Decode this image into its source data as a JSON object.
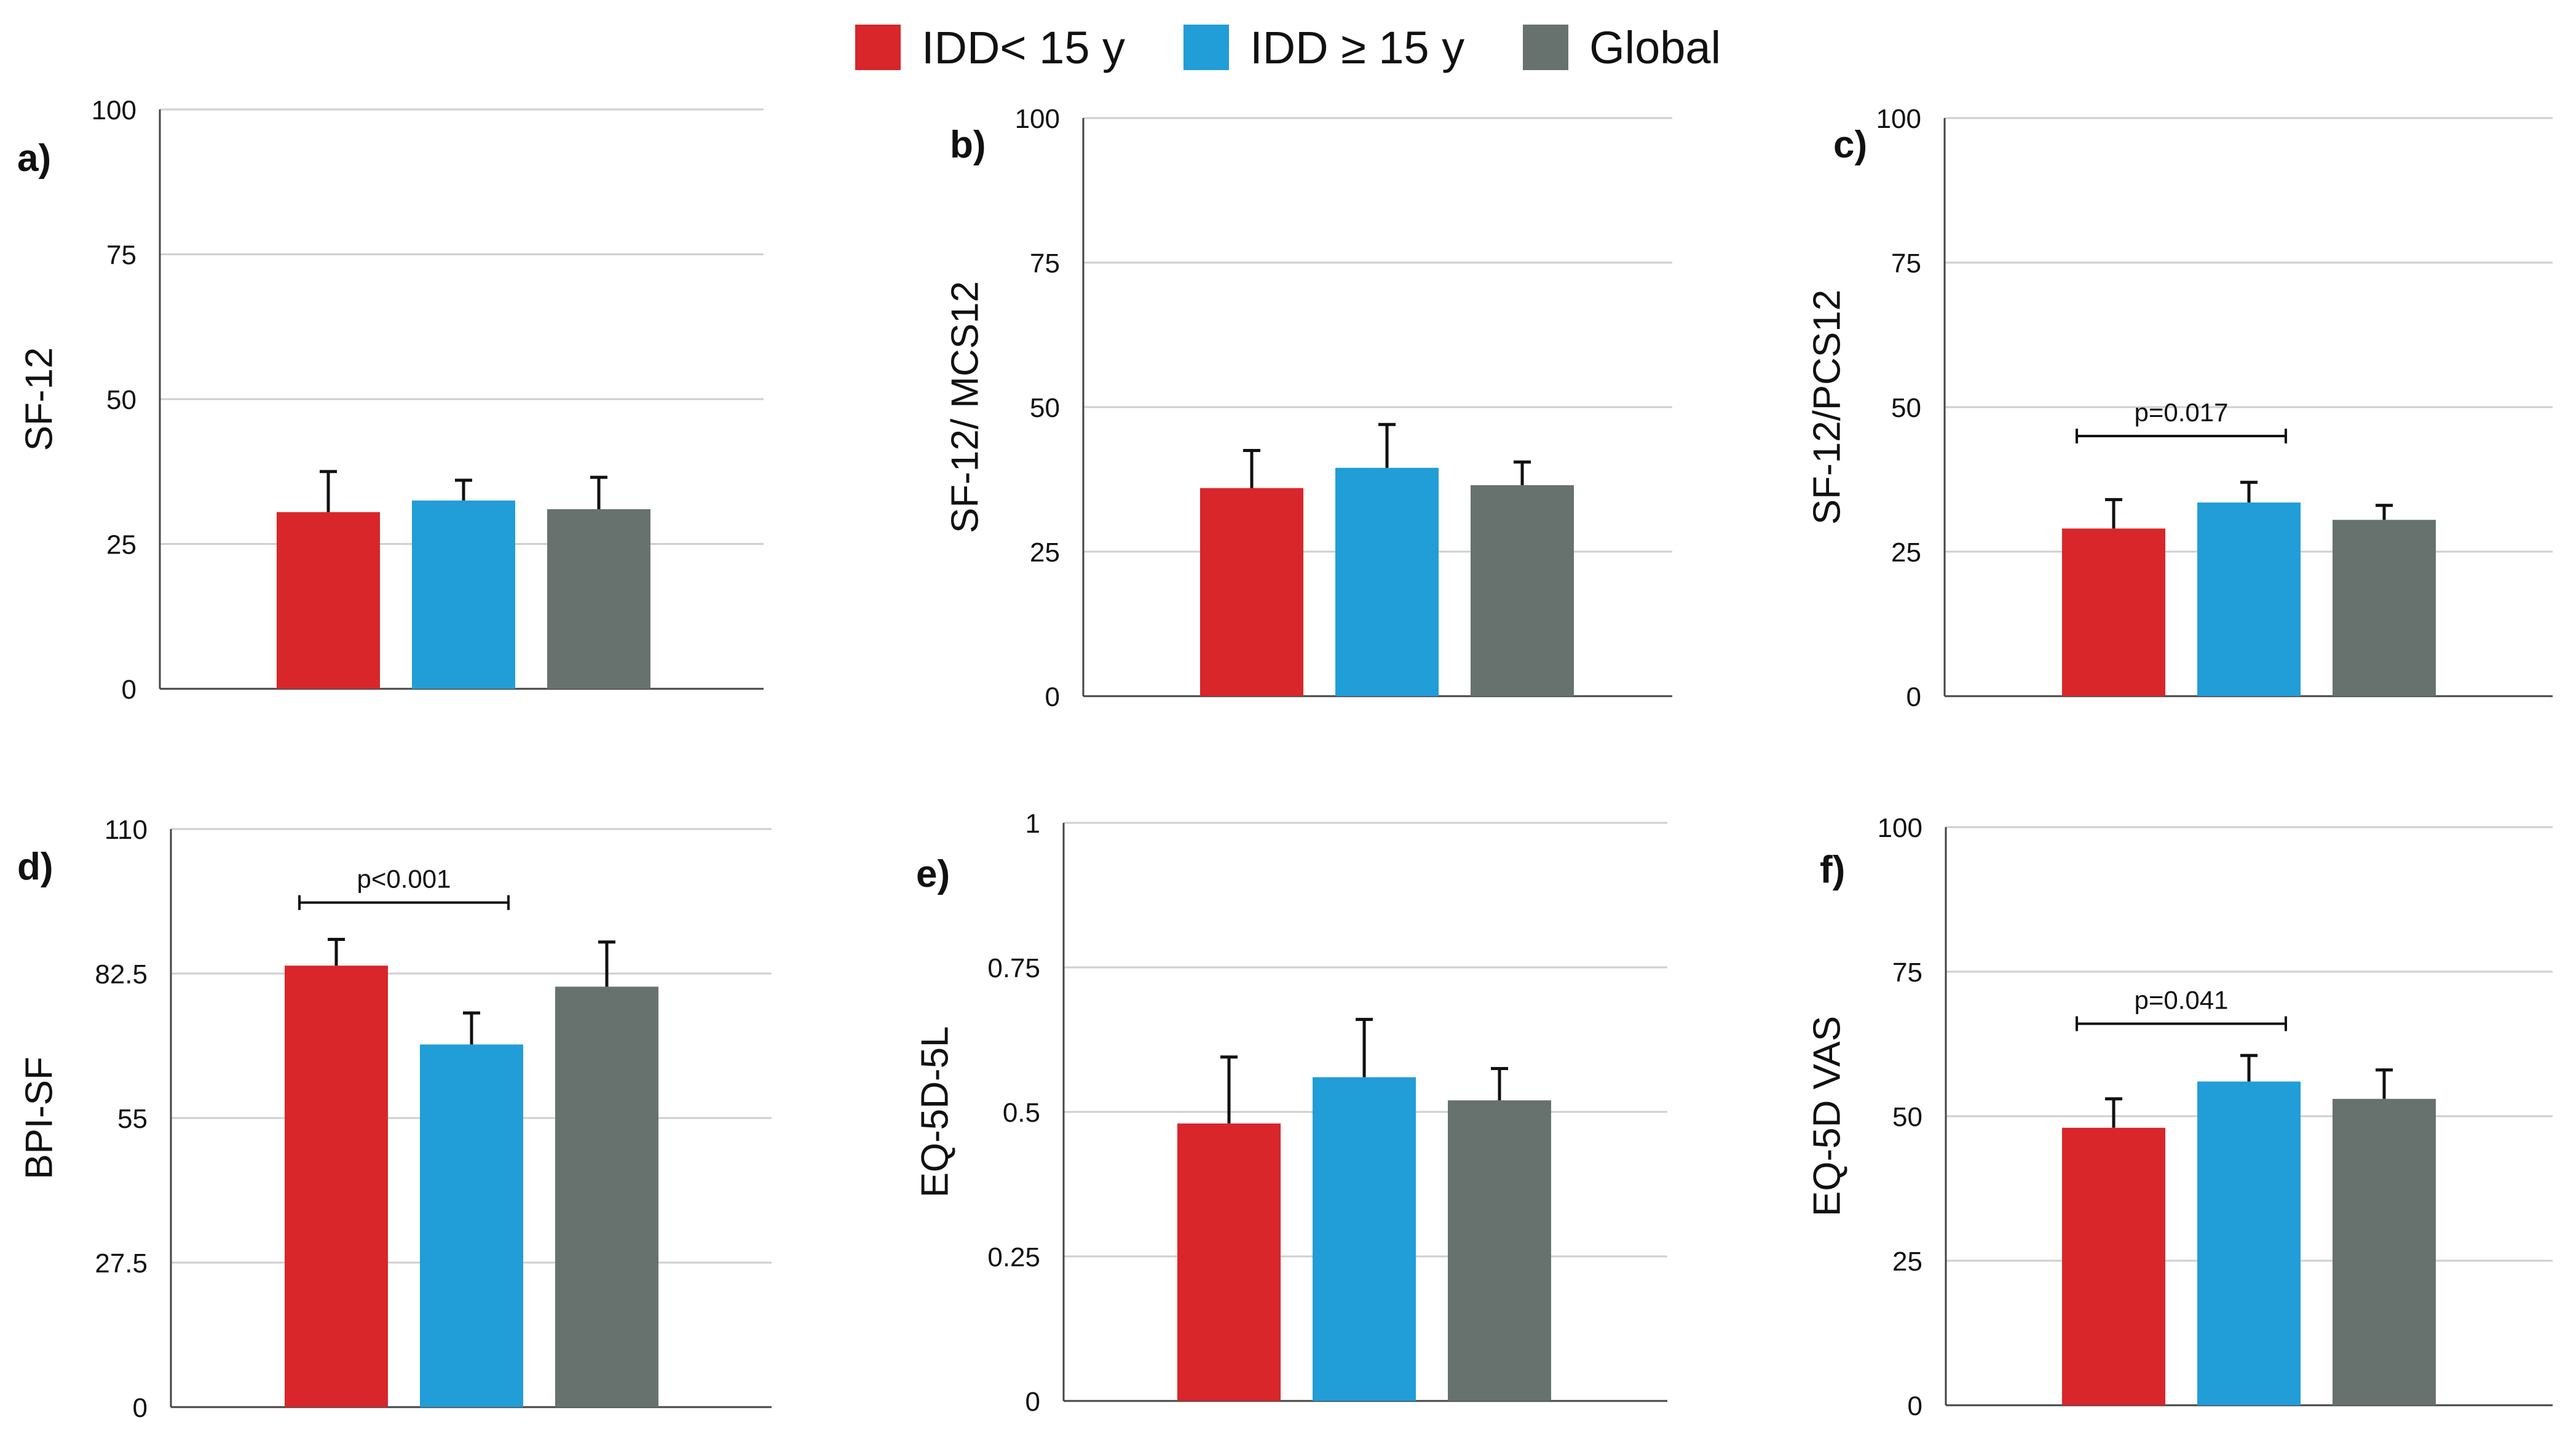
{
  "legend": [
    {
      "label": "IDD< 15 y",
      "color": "#d8262b"
    },
    {
      "label": "IDD ≥ 15 y",
      "color": "#219dd8"
    },
    {
      "label": "Global",
      "color": "#67726e"
    }
  ],
  "chart_data": [
    {
      "panel": "a)",
      "type": "bar",
      "ylabel": "SF-12",
      "ylim": [
        0,
        100
      ],
      "yticks": [
        "0",
        "25",
        "50",
        "75",
        "100"
      ],
      "categories": [
        "IDD< 15 y",
        "IDD ≥ 15 y",
        "Global"
      ],
      "values": [
        30.5,
        32.5,
        31
      ],
      "errors": [
        7,
        3.5,
        5.5
      ],
      "significance": null
    },
    {
      "panel": "b)",
      "type": "bar",
      "ylabel": "SF-12/ MCS12",
      "ylim": [
        0,
        100
      ],
      "yticks": [
        "0",
        "25",
        "50",
        "75",
        "100"
      ],
      "categories": [
        "IDD< 15 y",
        "IDD ≥ 15 y",
        "Global"
      ],
      "values": [
        36,
        39.5,
        36.5
      ],
      "errors": [
        6.5,
        7.5,
        4
      ],
      "significance": null
    },
    {
      "panel": "c)",
      "type": "bar",
      "ylabel": "SF-12/PCS12",
      "ylim": [
        0,
        100
      ],
      "yticks": [
        "0",
        "25",
        "50",
        "75",
        "100"
      ],
      "categories": [
        "IDD< 15 y",
        "IDD ≥ 15 y",
        "Global"
      ],
      "values": [
        29,
        33.5,
        30.5
      ],
      "errors": [
        5,
        3.5,
        2.5
      ],
      "significance": {
        "label": "p=0.017",
        "from": 0,
        "to": 1,
        "y": 45
      }
    },
    {
      "panel": "d)",
      "type": "bar",
      "ylabel": "BPI-SF",
      "ylim": [
        0,
        110
      ],
      "yticks": [
        "0",
        "27.5",
        "55",
        "82.5",
        "110"
      ],
      "categories": [
        "IDD< 15 y",
        "IDD ≥ 15 y",
        "Global"
      ],
      "values": [
        84,
        69,
        80
      ],
      "errors": [
        5,
        6,
        8.5
      ],
      "significance": {
        "label": "p<0.001",
        "from": 0,
        "to": 1,
        "y": 96
      }
    },
    {
      "panel": "e)",
      "type": "bar",
      "ylabel": "EQ-5D-5L",
      "ylim": [
        0,
        1
      ],
      "yticks": [
        "0",
        "0.25",
        "0.5",
        "0.75",
        "1"
      ],
      "categories": [
        "IDD< 15 y",
        "IDD ≥ 15 y",
        "Global"
      ],
      "values": [
        0.48,
        0.56,
        0.52
      ],
      "errors": [
        0.115,
        0.1,
        0.055
      ],
      "significance": null
    },
    {
      "panel": "f)",
      "type": "bar",
      "ylabel": "EQ-5D VAS",
      "ylim": [
        0,
        100
      ],
      "yticks": [
        "0",
        "25",
        "50",
        "75",
        "100"
      ],
      "categories": [
        "IDD< 15 y",
        "IDD ≥ 15 y",
        "Global"
      ],
      "values": [
        48,
        56,
        53
      ],
      "errors": [
        5,
        4.5,
        5
      ],
      "significance": {
        "label": "p=0.041",
        "from": 0,
        "to": 1,
        "y": 66
      }
    }
  ]
}
